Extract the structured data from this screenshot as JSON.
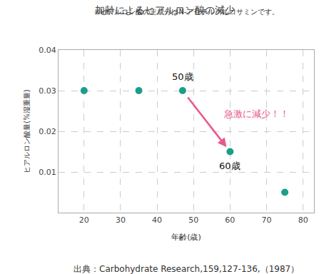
{
  "chart_data": {
    "type": "scatter",
    "title": "加齢によるヒアルロン酸の減少",
    "subtitle": "※ヒアルロン酸の主成分はN-アセチルグルコサミンです。",
    "x_label": "年齢(歳)",
    "y_label": "ヒアルロン酸量(%湿重量)",
    "x": [
      20,
      35,
      47,
      60,
      75
    ],
    "values": [
      0.03,
      0.03,
      0.03,
      0.015,
      0.005
    ],
    "color": "#1a9e8a",
    "marker": "circle",
    "xlim": [
      13,
      83
    ],
    "ylim": [
      0,
      0.04
    ],
    "xticks": [
      20,
      30,
      40,
      50,
      60,
      70,
      80
    ],
    "yticks": [
      0.01,
      0.02,
      0.03,
      0.04
    ],
    "grid": true,
    "annotations": [
      "50歳",
      "60歳",
      "急激に減少！！"
    ],
    "source": "出典：Carbohydrate Research,159,127-136,（1987）"
  }
}
